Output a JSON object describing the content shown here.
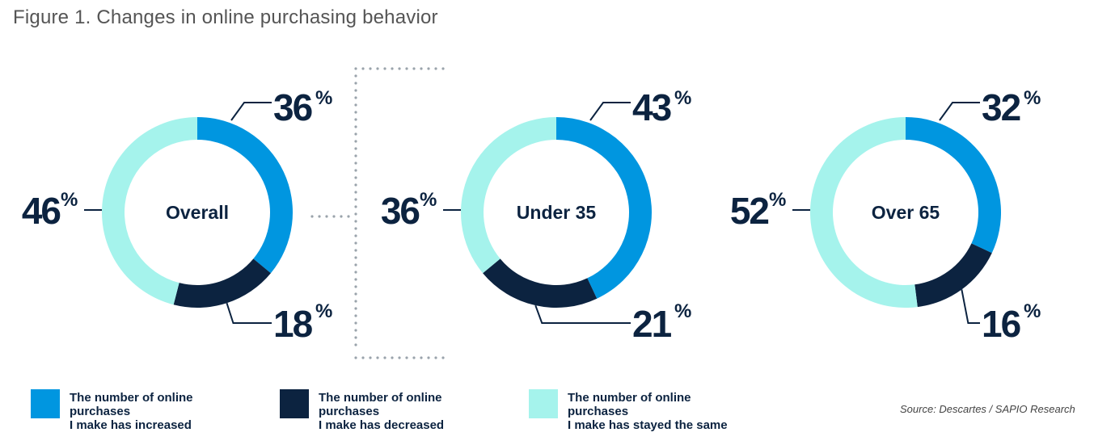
{
  "figure_title": "Figure 1. Changes in online purchasing behavior",
  "source": "Source: Descartes / SAPIO Research",
  "colors": {
    "increased": "#0096e0",
    "decreased": "#0c2340",
    "same": "#a5f3ec",
    "text": "#0c2340",
    "dots": "#9aa3ab"
  },
  "legend": [
    {
      "key": "increased",
      "line1": "The number of online purchases",
      "line2": "I make has increased"
    },
    {
      "key": "decreased",
      "line1": "The number of online purchases",
      "line2": "I make has decreased"
    },
    {
      "key": "same",
      "line1": "The number of online purchases",
      "line2": "I make has stayed the same"
    }
  ],
  "chart_data": [
    {
      "type": "pie",
      "title": "Overall",
      "categories": [
        "increased",
        "decreased",
        "same"
      ],
      "values": [
        36,
        18,
        46
      ],
      "value_labels": [
        "36",
        "18",
        "46"
      ],
      "unit": "%"
    },
    {
      "type": "pie",
      "title": "Under 35",
      "categories": [
        "increased",
        "decreased",
        "same"
      ],
      "values": [
        43,
        21,
        36
      ],
      "value_labels": [
        "43",
        "21",
        "36"
      ],
      "unit": "%"
    },
    {
      "type": "pie",
      "title": "Over 65",
      "categories": [
        "increased",
        "decreased",
        "same"
      ],
      "values": [
        32,
        16,
        52
      ],
      "value_labels": [
        "32",
        "16",
        "52"
      ],
      "unit": "%"
    }
  ]
}
